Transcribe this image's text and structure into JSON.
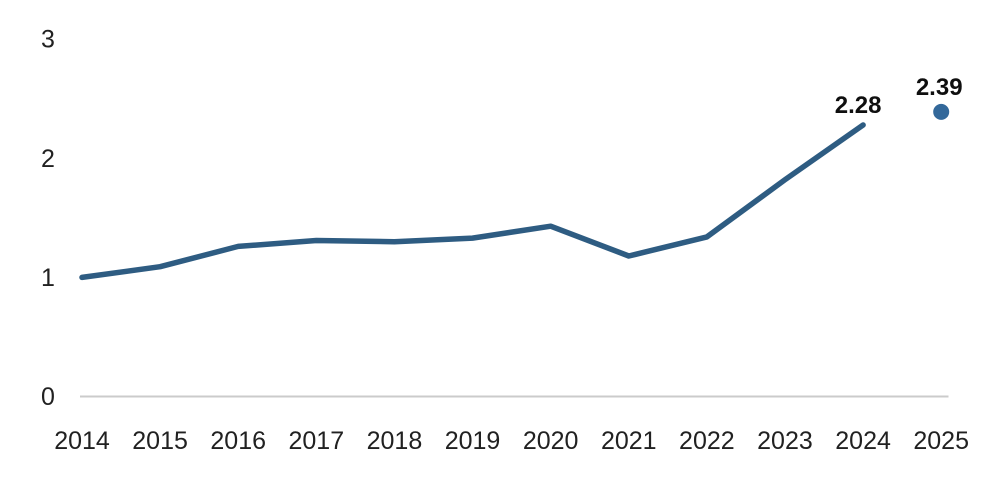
{
  "chart_data": {
    "type": "line",
    "title": "",
    "xlabel": "",
    "ylabel": "",
    "categories": [
      "2014",
      "2015",
      "2016",
      "2017",
      "2018",
      "2019",
      "2020",
      "2021",
      "2022",
      "2023",
      "2024",
      "2025"
    ],
    "values": [
      1.0,
      1.09,
      1.26,
      1.31,
      1.3,
      1.33,
      1.43,
      1.18,
      1.34,
      1.82,
      2.28,
      2.39
    ],
    "solid_line_last_index": 10,
    "isolated_point_index": 11,
    "point_labels": [
      {
        "index": 10,
        "label": "2.28"
      },
      {
        "index": 11,
        "label": "2.39"
      }
    ],
    "ylim": [
      0,
      3
    ],
    "yticks": [
      0,
      1,
      2,
      3
    ],
    "grid": false,
    "legend": "none",
    "colors": {
      "line": "#2e5c82",
      "dot": "#33689a",
      "axis_line": "#cbcbcb",
      "tick_label": "#212121",
      "data_label": "#0f0f0f",
      "background": "#ffffff"
    }
  }
}
